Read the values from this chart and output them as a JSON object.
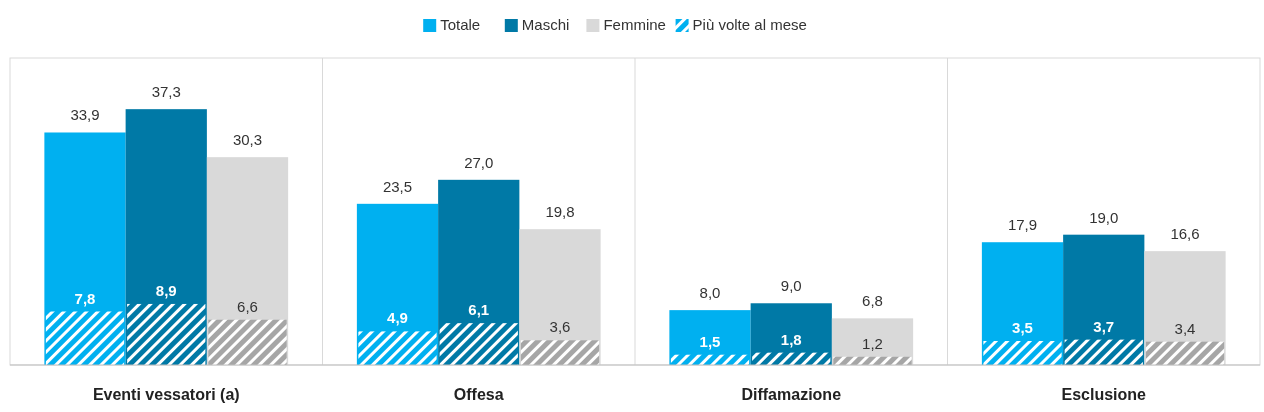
{
  "chart_data": {
    "type": "bar",
    "categories": [
      "Eventi vessatori (a)",
      "Offesa",
      "Diffamazione",
      "Esclusione"
    ],
    "series": [
      {
        "name": "Totale",
        "color": "#00b0f0",
        "values": [
          33.9,
          23.5,
          8.0,
          17.9
        ],
        "value_labels": [
          "33,9",
          "23,5",
          "8,0",
          "17,9"
        ]
      },
      {
        "name": "Maschi",
        "color": "#0079a6",
        "values": [
          37.3,
          27.0,
          9.0,
          19.0
        ],
        "value_labels": [
          "37,3",
          "27,0",
          "9,0",
          "19,0"
        ]
      },
      {
        "name": "Femmine",
        "color": "#d9d9d9",
        "values": [
          30.3,
          19.8,
          6.8,
          16.6
        ],
        "value_labels": [
          "30,3",
          "19,8",
          "6,8",
          "16,6"
        ]
      },
      {
        "name": "Più volte al mese",
        "color": "#00b0f0",
        "values": [
          7.8,
          4.9,
          1.5,
          3.5
        ],
        "value_labels": [
          "7,8",
          "4,9",
          "1,5",
          "3,5"
        ]
      },
      {
        "color": "#0079a6",
        "values": [
          8.9,
          6.1,
          1.8,
          3.7
        ],
        "value_labels": [
          "8,9",
          "6,1",
          "1,8",
          "3,7"
        ]
      },
      {
        "color": "#a6a6a6",
        "values": [
          6.6,
          3.6,
          1.2,
          3.4
        ],
        "value_labels": [
          "6,6",
          "3,6",
          "1,2",
          "3,4"
        ]
      }
    ],
    "legend": "top"
  }
}
